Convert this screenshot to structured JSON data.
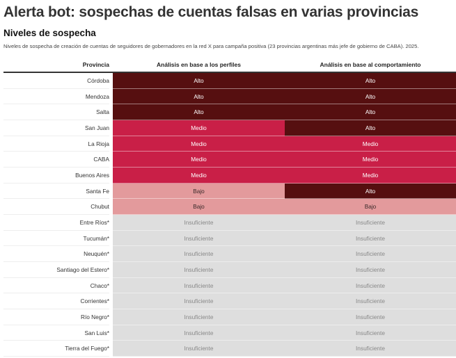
{
  "title": "Alerta bot: sospechas de cuentas falsas en varias provincias",
  "subtitle": "Niveles de sospecha",
  "description": "Niveles de sospecha de creación de cuentas de seguidores de gobernadores en la red X para campaña positiva (23 provincias argentinas más jefe de gobierno de CABA). 2025.",
  "level_colors": {
    "Alto": {
      "bg": "#560f10",
      "fg": "#ffffff"
    },
    "Medio": {
      "bg": "#c91f47",
      "fg": "#ffffff"
    },
    "Bajo": {
      "bg": "#e39a9c",
      "fg": "#3a2a2a"
    },
    "Insuficiente": {
      "bg": "#dedede",
      "fg": "#888888"
    }
  },
  "chart_data": {
    "type": "table",
    "title": "Alerta bot: sospechas de cuentas falsas en varias provincias",
    "subtitle": "Niveles de sospecha",
    "columns": [
      "Provincia",
      "Análisis en base a los perfiles",
      "Análisis en base al comportamiento"
    ],
    "rows": [
      {
        "provincia": "Córdoba",
        "perfiles": "Alto",
        "comportamiento": "Alto"
      },
      {
        "provincia": "Mendoza",
        "perfiles": "Alto",
        "comportamiento": "Alto"
      },
      {
        "provincia": "Salta",
        "perfiles": "Alto",
        "comportamiento": "Alto"
      },
      {
        "provincia": "San Juan",
        "perfiles": "Medio",
        "comportamiento": "Alto"
      },
      {
        "provincia": "La Rioja",
        "perfiles": "Medio",
        "comportamiento": "Medio"
      },
      {
        "provincia": "CABA",
        "perfiles": "Medio",
        "comportamiento": "Medio"
      },
      {
        "provincia": "Buenos Aires",
        "perfiles": "Medio",
        "comportamiento": "Medio"
      },
      {
        "provincia": "Santa Fe",
        "perfiles": "Bajo",
        "comportamiento": "Alto"
      },
      {
        "provincia": "Chubut",
        "perfiles": "Bajo",
        "comportamiento": "Bajo"
      },
      {
        "provincia": "Entre Ríos*",
        "perfiles": "Insuficiente",
        "comportamiento": "Insuficiente"
      },
      {
        "provincia": "Tucumán*",
        "perfiles": "Insuficiente",
        "comportamiento": "Insuficiente"
      },
      {
        "provincia": "Neuquén*",
        "perfiles": "Insuficiente",
        "comportamiento": "Insuficiente"
      },
      {
        "provincia": "Santiago del Estero*",
        "perfiles": "Insuficiente",
        "comportamiento": "Insuficiente"
      },
      {
        "provincia": "Chaco*",
        "perfiles": "Insuficiente",
        "comportamiento": "Insuficiente"
      },
      {
        "provincia": "Corrientes*",
        "perfiles": "Insuficiente",
        "comportamiento": "Insuficiente"
      },
      {
        "provincia": "Río Negro*",
        "perfiles": "Insuficiente",
        "comportamiento": "Insuficiente"
      },
      {
        "provincia": "San Luis*",
        "perfiles": "Insuficiente",
        "comportamiento": "Insuficiente"
      },
      {
        "provincia": "Tierra del Fuego*",
        "perfiles": "Insuficiente",
        "comportamiento": "Insuficiente"
      }
    ]
  }
}
